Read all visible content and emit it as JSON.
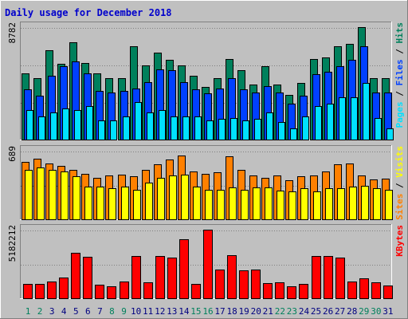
{
  "title": "Daily usage for December 2018",
  "colors": {
    "background": "#c0c0c0",
    "title": "#0000cc",
    "hits": "#00805c",
    "files": "#0040ff",
    "pages": "#00e0ff",
    "visits": "#ff8000",
    "sites": "#ffff00",
    "kbytes": "#ff0000",
    "weekend_day": "#00805c",
    "weekday": "#000080"
  },
  "chart_data": [
    {
      "type": "bar",
      "title": "Hits / Files / Pages",
      "y_max_label": "8782",
      "ylim": [
        0,
        8782
      ],
      "legend": [
        "Pages",
        "Files",
        "Hits"
      ],
      "categories": [
        "1",
        "2",
        "3",
        "4",
        "5",
        "6",
        "7",
        "8",
        "9",
        "10",
        "11",
        "12",
        "13",
        "14",
        "15",
        "16",
        "17",
        "18",
        "19",
        "20",
        "21",
        "22",
        "23",
        "24",
        "25",
        "26",
        "27",
        "28",
        "29",
        "30",
        "31"
      ],
      "weekend_days": [
        "1",
        "2",
        "8",
        "9",
        "15",
        "16",
        "22",
        "23",
        "29",
        "30"
      ],
      "series": [
        {
          "name": "Hits",
          "values": [
            5200,
            4800,
            7000,
            5900,
            7600,
            6000,
            5200,
            4800,
            4800,
            7300,
            5800,
            6800,
            6200,
            5800,
            5000,
            4100,
            4800,
            6300,
            5400,
            4300,
            5700,
            4300,
            3500,
            4400,
            6300,
            6400,
            7300,
            7500,
            8782,
            4800,
            4800
          ]
        },
        {
          "name": "Files",
          "values": [
            3900,
            3400,
            5000,
            5700,
            6100,
            5200,
            3800,
            3700,
            3800,
            4000,
            4500,
            5500,
            5400,
            4500,
            3900,
            3600,
            4000,
            4800,
            3900,
            3700,
            4200,
            3700,
            2800,
            3400,
            5100,
            5300,
            5700,
            6200,
            7300,
            3700,
            3700
          ]
        },
        {
          "name": "Pages",
          "values": [
            2300,
            1800,
            2100,
            2400,
            2300,
            2600,
            1500,
            1500,
            1800,
            2900,
            2100,
            2300,
            1800,
            1800,
            1800,
            1500,
            1600,
            1700,
            1500,
            1600,
            2100,
            1400,
            900,
            1800,
            2600,
            2800,
            3300,
            3300,
            4400,
            1700,
            900
          ]
        }
      ]
    },
    {
      "type": "bar",
      "title": "Visits / Sites",
      "y_max_label": "689",
      "ylim": [
        0,
        689
      ],
      "legend": [
        "Sites",
        "Visits"
      ],
      "categories": [
        "1",
        "2",
        "3",
        "4",
        "5",
        "6",
        "7",
        "8",
        "9",
        "10",
        "11",
        "12",
        "13",
        "14",
        "15",
        "16",
        "17",
        "18",
        "19",
        "20",
        "21",
        "22",
        "23",
        "24",
        "25",
        "26",
        "27",
        "28",
        "29",
        "30",
        "31"
      ],
      "series": [
        {
          "name": "Visits",
          "values": [
            580,
            610,
            560,
            540,
            500,
            460,
            420,
            440,
            450,
            430,
            500,
            550,
            600,
            640,
            480,
            460,
            470,
            630,
            500,
            440,
            420,
            440,
            390,
            430,
            440,
            480,
            550,
            560,
            440,
            400,
            410
          ]
        },
        {
          "name": "Sites",
          "values": [
            500,
            520,
            500,
            480,
            430,
            330,
            330,
            310,
            330,
            300,
            370,
            420,
            440,
            450,
            330,
            300,
            300,
            320,
            300,
            320,
            320,
            290,
            280,
            310,
            280,
            310,
            310,
            330,
            340,
            310,
            300
          ]
        }
      ]
    },
    {
      "type": "bar",
      "title": "KBytes",
      "y_max_label": "5182212",
      "ylim": [
        0,
        5182212
      ],
      "legend": [
        "KBytes"
      ],
      "categories": [
        "1",
        "2",
        "3",
        "4",
        "5",
        "6",
        "7",
        "8",
        "9",
        "10",
        "11",
        "12",
        "13",
        "14",
        "15",
        "16",
        "17",
        "18",
        "19",
        "20",
        "21",
        "22",
        "23",
        "24",
        "25",
        "26",
        "27",
        "28",
        "29",
        "30",
        "31"
      ],
      "series": [
        {
          "name": "KBytes",
          "values": [
            1100000,
            1100000,
            1250000,
            1550000,
            3420000,
            3150000,
            1050000,
            880000,
            1270000,
            3170000,
            1230000,
            3170000,
            3060000,
            4450000,
            1110000,
            5182212,
            2180000,
            3250000,
            2120000,
            2180000,
            1120000,
            1180000,
            880000,
            1110000,
            3170000,
            3170000,
            3080000,
            1260000,
            1500000,
            1180000,
            980000
          ]
        }
      ]
    }
  ]
}
